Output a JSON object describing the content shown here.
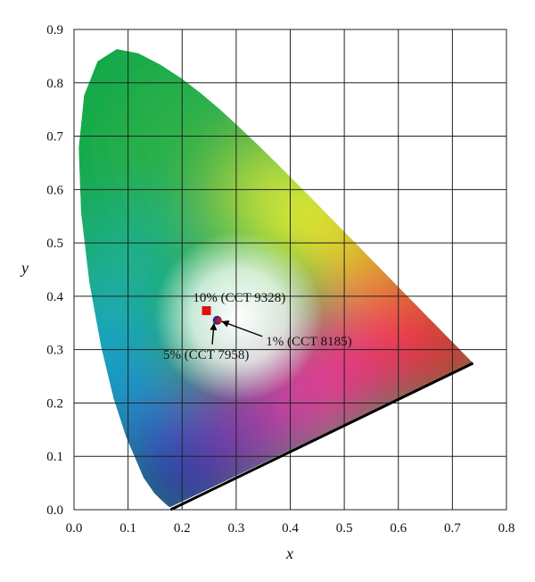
{
  "chart_data": {
    "type": "scatter",
    "xlabel": "x",
    "ylabel": "y",
    "xlim": [
      0.0,
      0.8
    ],
    "ylim": [
      0.0,
      0.9
    ],
    "x_ticks": [
      "0.0",
      "0.1",
      "0.2",
      "0.3",
      "0.4",
      "0.5",
      "0.6",
      "0.7",
      "0.8"
    ],
    "y_ticks": [
      "0.0",
      "0.1",
      "0.2",
      "0.3",
      "0.4",
      "0.5",
      "0.6",
      "0.7",
      "0.8",
      "0.9"
    ],
    "grid": true,
    "background": "CIE 1931 chromaticity diagram",
    "points": [
      {
        "label": "10% (CCT 9328)",
        "x": 0.245,
        "y": 0.373,
        "marker": "square",
        "color": "#e01010"
      },
      {
        "label": "5% (CCT 7958)",
        "x": 0.265,
        "y": 0.355,
        "marker": "circle",
        "color": "#3a2a8a"
      },
      {
        "label": "1% (CCT 8185)",
        "x": 0.268,
        "y": 0.356,
        "marker": "triangle",
        "color": "#d01818"
      }
    ],
    "annotations": [
      {
        "text": "10% (CCT 9328)",
        "x": 0.22,
        "y": 0.39
      },
      {
        "text": "5% (CCT 7958)",
        "x": 0.165,
        "y": 0.283,
        "arrow_to": [
          0.259,
          0.35
        ]
      },
      {
        "text": "1% (CCT 8185)",
        "x": 0.355,
        "y": 0.308,
        "arrow_to": [
          0.273,
          0.353
        ]
      }
    ]
  }
}
